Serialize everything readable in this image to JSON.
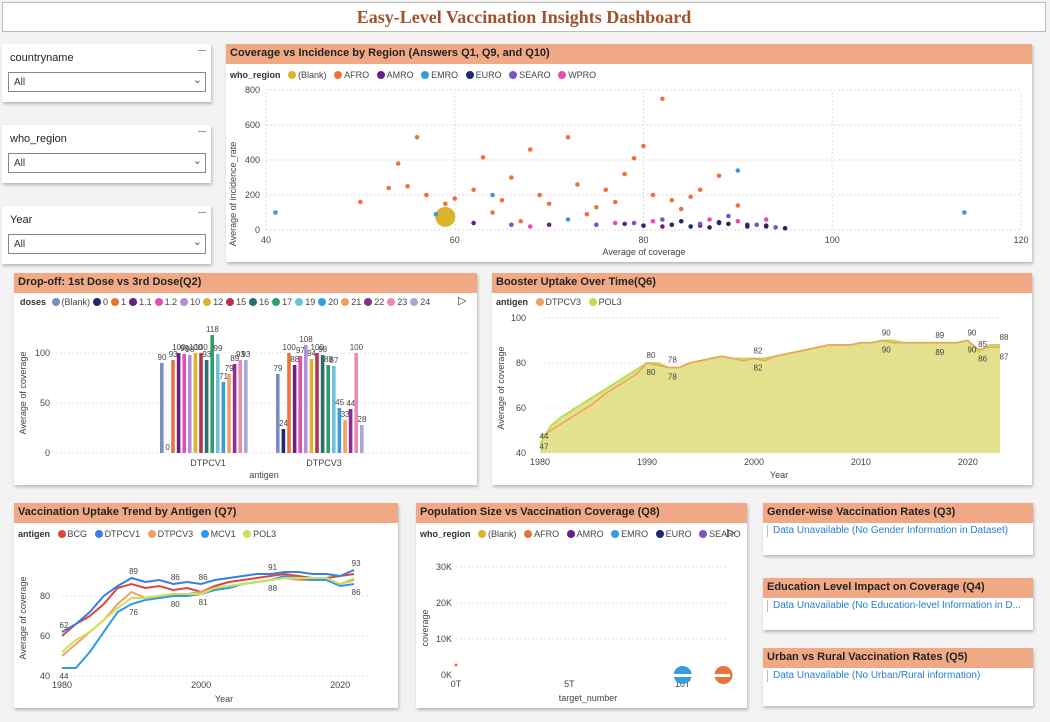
{
  "title": "Easy-Level Vaccination Insights Dashboard",
  "slicers": [
    {
      "label": "countryname",
      "value": "All"
    },
    {
      "label": "who_region",
      "value": "All"
    },
    {
      "label": "Year",
      "value": "All"
    }
  ],
  "colors": {
    "header": "#f1a985",
    "title": "#a0522d",
    "blank": "#dbb42c",
    "AFRO": "#e8743b",
    "AMRO": "#6b1e82",
    "EMRO": "#3a9bdc",
    "EURO": "#1f2a6b",
    "SEARO": "#7d4fc9",
    "WPRO": "#e04fb4"
  },
  "scatter1": {
    "title": "Coverage vs Incidence by Region (Answers Q1, Q9, and Q10)",
    "legend_title": "who_region",
    "legend": [
      "(Blank)",
      "AFRO",
      "AMRO",
      "EMRO",
      "EURO",
      "SEARO",
      "WPRO"
    ],
    "xlabel": "Average of coverage",
    "ylabel": "Average of incidence_rate",
    "xticks": [
      "40",
      "60",
      "80",
      "100",
      "120"
    ],
    "yticks": [
      "0",
      "200",
      "400",
      "600",
      "800"
    ]
  },
  "dropoff": {
    "title": "Drop-off: 1st Dose vs 3rd Dose(Q2)",
    "legend_title": "doses",
    "legend": [
      "(Blank)",
      "0",
      "1",
      "1.1",
      "1.2",
      "10",
      "12",
      "15",
      "16",
      "17",
      "19",
      "20",
      "21",
      "22",
      "23",
      "24"
    ],
    "xlabel": "antigen",
    "ylabel": "Average of coverage",
    "yticks": [
      "0",
      "50",
      "100"
    ],
    "categories": [
      "DTPCV1",
      "DTPCV3"
    ]
  },
  "booster": {
    "title": "Booster Uptake Over Time(Q6)",
    "legend_title": "antigen",
    "legend": [
      "DTPCV3",
      "POL3"
    ],
    "xlabel": "Year",
    "ylabel": "Average of coverage",
    "yticks": [
      "40",
      "60",
      "80",
      "100"
    ],
    "xticks": [
      "1980",
      "1990",
      "2000",
      "2010",
      "2020"
    ]
  },
  "trend": {
    "title": "Vaccination Uptake Trend by Antigen (Q7)",
    "legend_title": "antigen",
    "legend": [
      "BCG",
      "DTPCV1",
      "DTPCV3",
      "MCV1",
      "POL3"
    ],
    "xlabel": "Year",
    "ylabel": "Average of coverage",
    "yticks": [
      "40",
      "60",
      "80"
    ],
    "xticks": [
      "1980",
      "2000",
      "2020"
    ]
  },
  "population": {
    "title": "Population Size vs Vaccination Coverage (Q8)",
    "legend_title": "who_region",
    "legend": [
      "(Blank)",
      "AFRO",
      "AMRO",
      "EMRO",
      "EURO",
      "SEARO"
    ],
    "xlabel": "target_number",
    "ylabel": "coverage",
    "yticks": [
      "0K",
      "10K",
      "20K",
      "30K"
    ],
    "xticks": [
      "0T",
      "5T",
      "10T"
    ]
  },
  "gender": {
    "title": "Gender-wise Vaccination Rates (Q3)",
    "text": "Data Unavailable (No Gender Information in Dataset)"
  },
  "education": {
    "title": "Education Level Impact on Coverage (Q4)",
    "text": "Data Unavailable (No Education-level Information in D..."
  },
  "urban": {
    "title": "Urban vs Rural Vaccination Rates (Q5)",
    "text": "Data Unavailable (No Urban/Rural information)"
  },
  "chart_data": [
    {
      "type": "scatter",
      "title": "Coverage vs Incidence by Region (Answers Q1, Q9, and Q10)",
      "xlabel": "Average of coverage",
      "ylabel": "Average of incidence_rate",
      "xlim": [
        40,
        120
      ],
      "ylim": [
        0,
        800
      ],
      "series": [
        {
          "name": "(Blank)",
          "points": [
            [
              59,
              75
            ]
          ]
        },
        {
          "name": "AFRO",
          "points": [
            [
              50,
              160
            ],
            [
              53,
              240
            ],
            [
              54,
              380
            ],
            [
              55,
              250
            ],
            [
              56,
              530
            ],
            [
              57,
              200
            ],
            [
              59,
              150
            ],
            [
              60,
              180
            ],
            [
              62,
              230
            ],
            [
              63,
              415
            ],
            [
              65,
              170
            ],
            [
              66,
              300
            ],
            [
              68,
              460
            ],
            [
              70,
              150
            ],
            [
              72,
              530
            ],
            [
              73,
              260
            ],
            [
              75,
              130
            ],
            [
              76,
              230
            ],
            [
              78,
              320
            ],
            [
              79,
              410
            ],
            [
              80,
              480
            ],
            [
              81,
              200
            ],
            [
              82,
              750
            ],
            [
              83,
              170
            ],
            [
              84,
              120
            ],
            [
              86,
              230
            ],
            [
              88,
              310
            ],
            [
              90,
              140
            ],
            [
              64,
              100
            ],
            [
              67,
              50
            ],
            [
              69,
              200
            ],
            [
              74,
              90
            ],
            [
              77,
              160
            ],
            [
              85,
              190
            ]
          ]
        },
        {
          "name": "AMRO",
          "points": [
            [
              62,
              40
            ],
            [
              70,
              30
            ],
            [
              78,
              35
            ],
            [
              82,
              20
            ],
            [
              86,
              25
            ],
            [
              88,
              45
            ],
            [
              91,
              30
            ],
            [
              93,
              20
            ]
          ]
        },
        {
          "name": "EMRO",
          "points": [
            [
              41,
              100
            ],
            [
              58,
              90
            ],
            [
              64,
              200
            ],
            [
              72,
              60
            ],
            [
              90,
              340
            ],
            [
              114,
              100
            ]
          ]
        },
        {
          "name": "EURO",
          "points": [
            [
              80,
              25
            ],
            [
              83,
              30
            ],
            [
              85,
              20
            ],
            [
              87,
              15
            ],
            [
              89,
              35
            ],
            [
              91,
              20
            ],
            [
              93,
              25
            ],
            [
              95,
              10
            ],
            [
              84,
              50
            ],
            [
              88,
              40
            ]
          ]
        },
        {
          "name": "SEARO",
          "points": [
            [
              66,
              30
            ],
            [
              75,
              30
            ],
            [
              79,
              40
            ],
            [
              82,
              60
            ],
            [
              86,
              35
            ],
            [
              89,
              80
            ],
            [
              92,
              30
            ],
            [
              94,
              15
            ]
          ]
        },
        {
          "name": "WPRO",
          "points": [
            [
              68,
              20
            ],
            [
              77,
              40
            ],
            [
              81,
              50
            ],
            [
              87,
              60
            ],
            [
              90,
              50
            ],
            [
              93,
              60
            ]
          ]
        }
      ]
    },
    {
      "type": "bar",
      "title": "Drop-off: 1st Dose vs 3rd Dose(Q2)",
      "categories": [
        "DTPCV1",
        "DTPCV3"
      ],
      "ylim": [
        0,
        130
      ],
      "series": [
        {
          "name": "(Blank)",
          "values": [
            90,
            79
          ]
        },
        {
          "name": "0",
          "values": [
            0,
            24
          ]
        },
        {
          "name": "1",
          "values": [
            93,
            100
          ]
        },
        {
          "name": "1.1",
          "values": [
            100,
            88
          ]
        },
        {
          "name": "1.2",
          "values": [
            99,
            97
          ]
        },
        {
          "name": "10",
          "values": [
            98,
            108
          ]
        },
        {
          "name": "12",
          "values": [
            100,
            94
          ]
        },
        {
          "name": "15",
          "values": [
            100,
            100
          ]
        },
        {
          "name": "16",
          "values": [
            93,
            98
          ]
        },
        {
          "name": "17",
          "values": [
            118,
            88
          ]
        },
        {
          "name": "19",
          "values": [
            99,
            87
          ]
        },
        {
          "name": "20",
          "values": [
            71,
            45
          ]
        },
        {
          "name": "21",
          "values": [
            79,
            33
          ]
        },
        {
          "name": "22",
          "values": [
            89,
            44
          ]
        },
        {
          "name": "23",
          "values": [
            93,
            100
          ]
        },
        {
          "name": "24",
          "values": [
            93,
            28
          ]
        }
      ]
    },
    {
      "type": "area",
      "title": "Booster Uptake Over Time(Q6)",
      "x": [
        1980,
        1981,
        1982,
        1983,
        1984,
        1985,
        1986,
        1987,
        1988,
        1989,
        1990,
        1991,
        1992,
        1993,
        1994,
        1995,
        1996,
        1997,
        1998,
        1999,
        2000,
        2001,
        2002,
        2003,
        2004,
        2005,
        2006,
        2007,
        2008,
        2009,
        2010,
        2011,
        2012,
        2013,
        2014,
        2015,
        2016,
        2017,
        2018,
        2019,
        2020,
        2021,
        2022,
        2023
      ],
      "ylim": [
        40,
        100
      ],
      "series": [
        {
          "name": "DTPCV3",
          "values": [
            47,
            50,
            53,
            56,
            59,
            62,
            66,
            69,
            72,
            75,
            80,
            79,
            78,
            78,
            80,
            81,
            82,
            83,
            82,
            81,
            82,
            81,
            83,
            84,
            85,
            86,
            87,
            88,
            88,
            88,
            89,
            89,
            90,
            89,
            89,
            89,
            89,
            89,
            89,
            89,
            90,
            86,
            87,
            87
          ]
        },
        {
          "name": "POL3",
          "values": [
            44,
            52,
            56,
            59,
            62,
            65,
            68,
            71,
            74,
            77,
            80,
            80,
            78,
            78,
            80,
            81,
            82,
            83,
            82,
            82,
            82,
            82,
            83,
            84,
            85,
            86,
            87,
            88,
            88,
            88,
            89,
            89,
            90,
            90,
            89,
            89,
            89,
            89,
            89,
            89,
            90,
            85,
            88,
            88
          ]
        }
      ]
    },
    {
      "type": "line",
      "title": "Vaccination Uptake Trend by Antigen (Q7)",
      "x": [
        1980,
        1982,
        1984,
        1986,
        1988,
        1990,
        1992,
        1994,
        1996,
        1998,
        2000,
        2002,
        2004,
        2006,
        2008,
        2010,
        2012,
        2014,
        2016,
        2018,
        2020,
        2022
      ],
      "ylim": [
        40,
        100
      ],
      "series": [
        {
          "name": "BCG",
          "values": [
            60,
            66,
            70,
            76,
            84,
            86,
            84,
            85,
            83,
            84,
            82,
            85,
            87,
            88,
            89,
            90,
            91,
            90,
            89,
            89,
            90,
            91
          ]
        },
        {
          "name": "DTPCV1",
          "values": [
            62,
            66,
            72,
            80,
            85,
            89,
            87,
            88,
            86,
            87,
            86,
            88,
            89,
            90,
            91,
            91,
            92,
            92,
            91,
            91,
            90,
            93
          ]
        },
        {
          "name": "DTPCV3",
          "values": [
            50,
            56,
            62,
            68,
            76,
            82,
            79,
            80,
            81,
            81,
            82,
            84,
            85,
            86,
            87,
            88,
            89,
            88,
            88,
            88,
            86,
            88
          ]
        },
        {
          "name": "MCV1",
          "values": [
            44,
            44,
            52,
            62,
            72,
            76,
            78,
            79,
            80,
            80,
            81,
            83,
            84,
            86,
            87,
            88,
            90,
            89,
            88,
            88,
            85,
            86
          ]
        },
        {
          "name": "POL3",
          "values": [
            52,
            58,
            62,
            68,
            74,
            79,
            79,
            80,
            81,
            81,
            81,
            84,
            85,
            86,
            87,
            88,
            89,
            89,
            89,
            89,
            86,
            89
          ]
        }
      ]
    },
    {
      "type": "scatter",
      "title": "Population Size vs Vaccination Coverage (Q8)",
      "xlabel": "target_number",
      "ylabel": "coverage",
      "series": [
        {
          "name": "AFRO",
          "points": [
            [
              0,
              0
            ],
            [
              12000000000000,
              0
            ]
          ]
        },
        {
          "name": "EMRO",
          "points": [
            [
              10000000000000,
              0
            ]
          ]
        }
      ]
    }
  ]
}
